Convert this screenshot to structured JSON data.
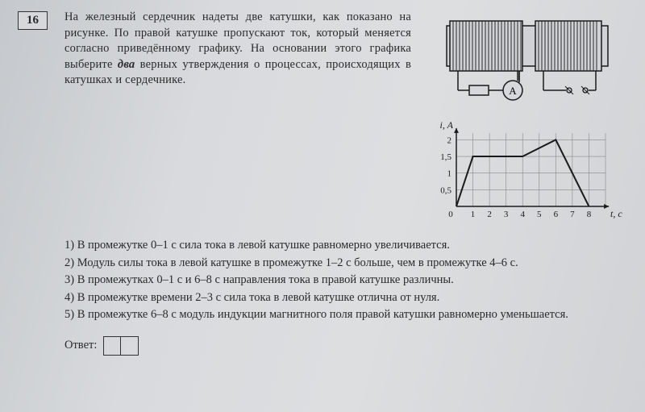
{
  "question_number": "16",
  "question_text_lines": [
    "На железный сердечник надеты две катушки,",
    "как показано на рисунке. По правой катушке",
    "пропускают ток, который меняется согласно",
    "приведённому графику. На основании этого",
    "графика выберите два верных утверждения",
    "о процессах, происходящих в катушках",
    "и сердечнике."
  ],
  "em_word": "два",
  "diagram": {
    "ammeter_label": "A",
    "core_color": "#d0d2d5",
    "coil_color": "#3a3a3a"
  },
  "chart": {
    "xlabel": "t, c",
    "ylabel": "i, A",
    "xlim": [
      0,
      9
    ],
    "ylim": [
      0,
      2.3
    ],
    "xticks": [
      1,
      2,
      3,
      4,
      5,
      6,
      7,
      8
    ],
    "yticks": [
      0.5,
      1,
      1.5,
      2
    ],
    "ytick_labels": [
      "0,5",
      "1",
      "1,5",
      "2"
    ],
    "grid_color": "#888",
    "line_color": "#1a1a1a",
    "line_width": 2,
    "background": "#d6d8db",
    "points": [
      [
        0,
        0
      ],
      [
        1,
        1.5
      ],
      [
        4,
        1.5
      ],
      [
        6,
        2
      ],
      [
        8,
        0
      ]
    ]
  },
  "options": [
    "1) В промежутке 0–1 с сила тока в левой катушке равномерно увеличивается.",
    "2) Модуль силы тока в левой катушке в промежутке 1–2 с больше, чем в промежутке 4–6 с.",
    "3) В промежутках 0–1 с и 6–8 с направления тока в правой катушке различны.",
    "4) В промежутке времени 2–3 с сила тока в левой катушке отлична от нуля.",
    "5) В промежутке 6–8 с модуль индукции магнитного поля правой катушки равномерно уменьшается."
  ],
  "answer_label": "Ответ:"
}
